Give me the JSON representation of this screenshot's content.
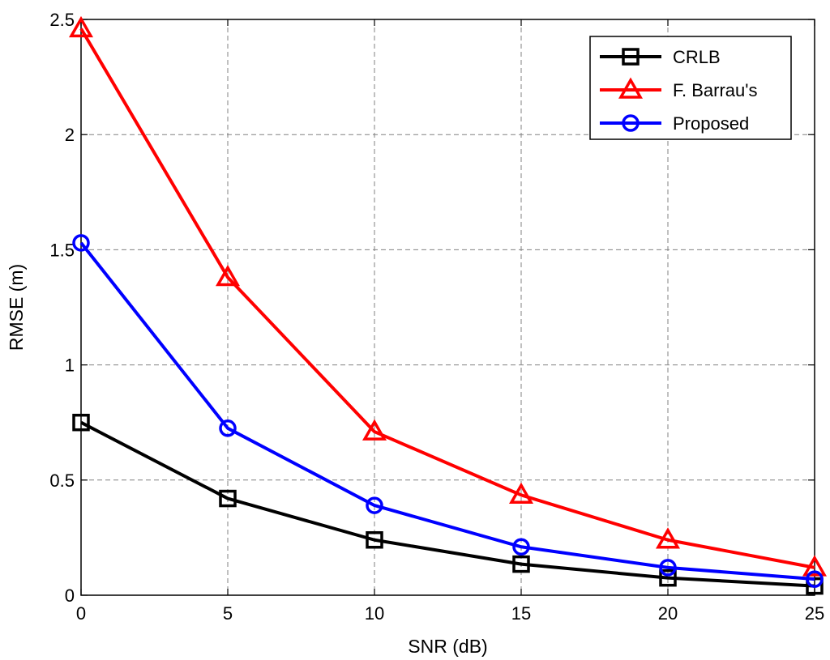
{
  "chart_data": {
    "type": "line",
    "title": "",
    "xlabel": "SNR (dB)",
    "ylabel": "RMSE (m)",
    "x": [
      0,
      5,
      10,
      15,
      20,
      25
    ],
    "xlim": [
      0,
      25
    ],
    "ylim": [
      0,
      2.5
    ],
    "xticks": [
      0,
      5,
      10,
      15,
      20,
      25
    ],
    "yticks": [
      0,
      0.5,
      1,
      1.5,
      2,
      2.5
    ],
    "xtick_labels": [
      "0",
      "5",
      "10",
      "15",
      "20",
      "25"
    ],
    "ytick_labels": [
      "0",
      "0.5",
      "1",
      "1.5",
      "2",
      "2.5"
    ],
    "grid": true,
    "legend_position": "top-right",
    "series": [
      {
        "name": "CRLB",
        "color": "#000000",
        "marker": "square",
        "values": [
          0.75,
          0.42,
          0.24,
          0.135,
          0.075,
          0.04
        ]
      },
      {
        "name": "F. Barrau's",
        "color": "#ff0000",
        "marker": "triangle",
        "values": [
          2.46,
          1.38,
          0.71,
          0.435,
          0.24,
          0.12
        ]
      },
      {
        "name": "Proposed",
        "color": "#0000ff",
        "marker": "circle",
        "values": [
          1.53,
          0.725,
          0.39,
          0.21,
          0.12,
          0.07
        ]
      }
    ]
  }
}
